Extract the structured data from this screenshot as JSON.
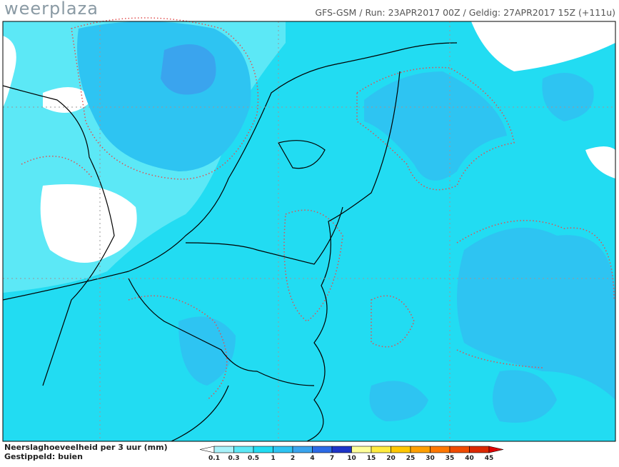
{
  "logo": "weerplaza",
  "header": "GFS-GSM / Run: 23APR2017 00Z / Geldig: 27APR2017 15Z (+111u)",
  "footer": {
    "line1": "Neerslaghoeveelheid per 3 uur (mm)",
    "line2": "Gestippeld: buien"
  },
  "colorbar": {
    "labels": [
      0.1,
      0.3,
      0.5,
      1,
      2,
      4,
      7,
      10,
      15,
      20,
      25,
      30,
      35,
      40,
      45
    ],
    "colors": [
      "#a8f2fa",
      "#5ce8f6",
      "#22dcf2",
      "#2ec4f2",
      "#3aa4ee",
      "#2c6ae6",
      "#1e34c8",
      "#ffff9a",
      "#ffec40",
      "#ffc800",
      "#ffa000",
      "#ff7800",
      "#f04b00",
      "#dc2800"
    ],
    "under_color": "#ffffff",
    "over_color": "#e00000"
  }
}
